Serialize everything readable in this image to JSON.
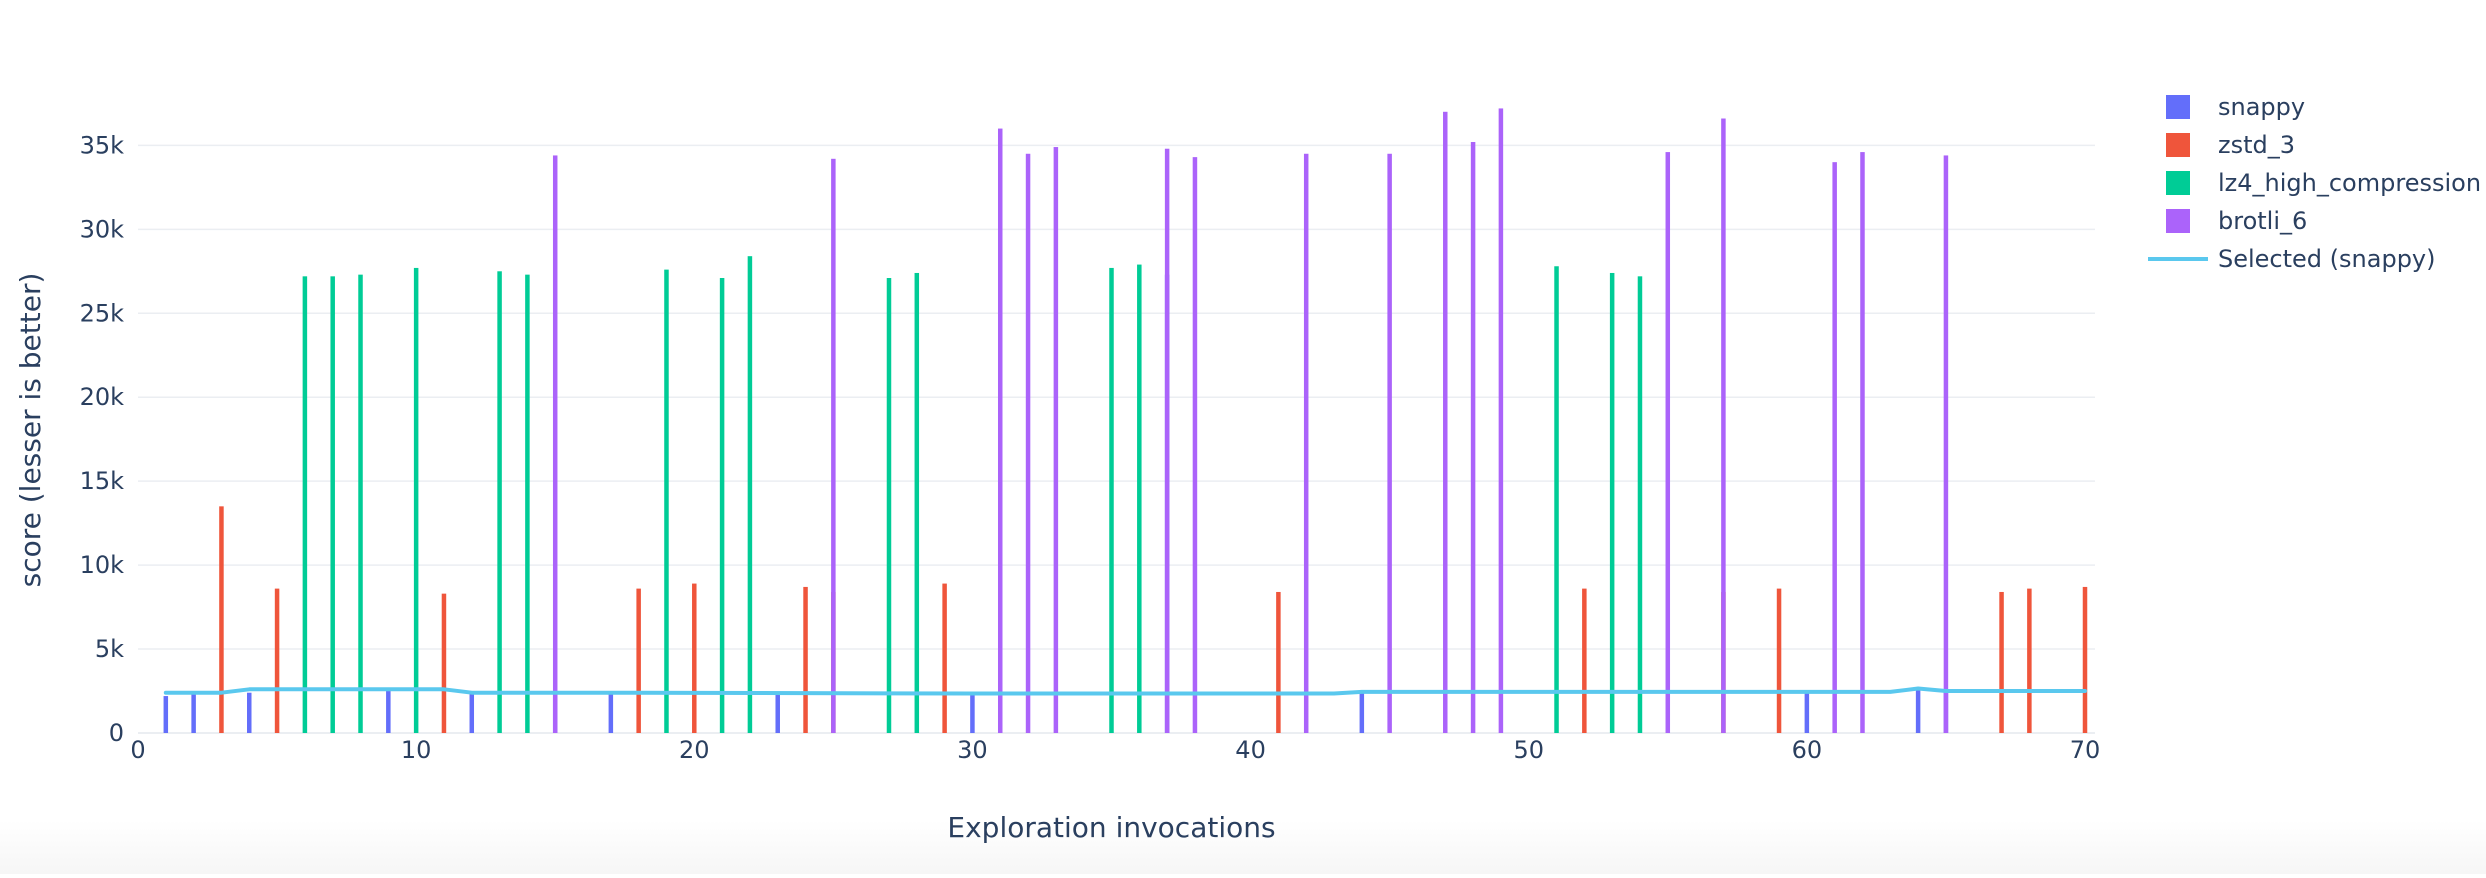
{
  "chart_data": {
    "type": "bar",
    "xlabel": "Exploration invocations",
    "ylabel": "score (lesser is better)",
    "xlim": [
      0,
      70
    ],
    "ylim": [
      0,
      38000
    ],
    "x_ticks": [
      0,
      10,
      20,
      30,
      40,
      50,
      60,
      70
    ],
    "x_tick_labels": [
      "0",
      "10",
      "20",
      "30",
      "40",
      "50",
      "60",
      "70"
    ],
    "y_ticks": [
      0,
      5000,
      10000,
      15000,
      20000,
      25000,
      30000,
      35000
    ],
    "y_tick_labels": [
      "0",
      "5k",
      "10k",
      "15k",
      "20k",
      "25k",
      "30k",
      "35k"
    ],
    "grid": true,
    "legend_position": "top-right",
    "series": [
      {
        "name": "snappy",
        "kind": "bar",
        "color": "#636efa",
        "points": [
          [
            1,
            2200
          ],
          [
            2,
            2300
          ],
          [
            4,
            2400
          ],
          [
            9,
            2500
          ],
          [
            12,
            2400
          ],
          [
            15,
            2500
          ],
          [
            17,
            2300
          ],
          [
            23,
            2400
          ],
          [
            30,
            2400
          ],
          [
            37,
            27300
          ],
          [
            44,
            2500
          ],
          [
            60,
            2500
          ],
          [
            64,
            2600
          ],
          [
            65,
            2500
          ]
        ]
      },
      {
        "name": "zstd_3",
        "kind": "bar",
        "color": "#ef553b",
        "points": [
          [
            3,
            13500
          ],
          [
            5,
            8600
          ],
          [
            11,
            8300
          ],
          [
            18,
            8600
          ],
          [
            20,
            8900
          ],
          [
            24,
            8700
          ],
          [
            25,
            8400
          ],
          [
            29,
            8900
          ],
          [
            41,
            8400
          ],
          [
            52,
            8600
          ],
          [
            57,
            8400
          ],
          [
            59,
            8600
          ],
          [
            67,
            8400
          ],
          [
            68,
            8600
          ],
          [
            70,
            8700
          ]
        ]
      },
      {
        "name": "lz4_high_compression",
        "kind": "bar",
        "color": "#00cc96",
        "points": [
          [
            6,
            27200
          ],
          [
            7,
            27200
          ],
          [
            8,
            27300
          ],
          [
            10,
            27700
          ],
          [
            13,
            27500
          ],
          [
            14,
            27300
          ],
          [
            19,
            27600
          ],
          [
            21,
            27100
          ],
          [
            22,
            28400
          ],
          [
            27,
            27100
          ],
          [
            28,
            27400
          ],
          [
            35,
            27700
          ],
          [
            36,
            27900
          ],
          [
            51,
            27800
          ],
          [
            53,
            27400
          ],
          [
            54,
            27200
          ]
        ]
      },
      {
        "name": "brotli_6",
        "kind": "bar",
        "color": "#ab63fa",
        "points": [
          [
            15,
            34400
          ],
          [
            25,
            34200
          ],
          [
            31,
            36000
          ],
          [
            32,
            34500
          ],
          [
            33,
            34900
          ],
          [
            37,
            34800
          ],
          [
            38,
            34300
          ],
          [
            42,
            34500
          ],
          [
            45,
            34500
          ],
          [
            47,
            37000
          ],
          [
            48,
            35200
          ],
          [
            49,
            37200
          ],
          [
            55,
            34600
          ],
          [
            57,
            36600
          ],
          [
            61,
            34000
          ],
          [
            62,
            34600
          ],
          [
            65,
            34400
          ]
        ]
      },
      {
        "name": "Selected (snappy)",
        "kind": "line",
        "color": "#5ac8ee",
        "points": [
          [
            1,
            2400
          ],
          [
            3,
            2400
          ],
          [
            4,
            2600
          ],
          [
            8,
            2600
          ],
          [
            11,
            2600
          ],
          [
            12,
            2400
          ],
          [
            17,
            2400
          ],
          [
            30,
            2350
          ],
          [
            43,
            2350
          ],
          [
            44,
            2450
          ],
          [
            63,
            2450
          ],
          [
            64,
            2650
          ],
          [
            65,
            2500
          ],
          [
            70,
            2500
          ]
        ]
      }
    ]
  }
}
